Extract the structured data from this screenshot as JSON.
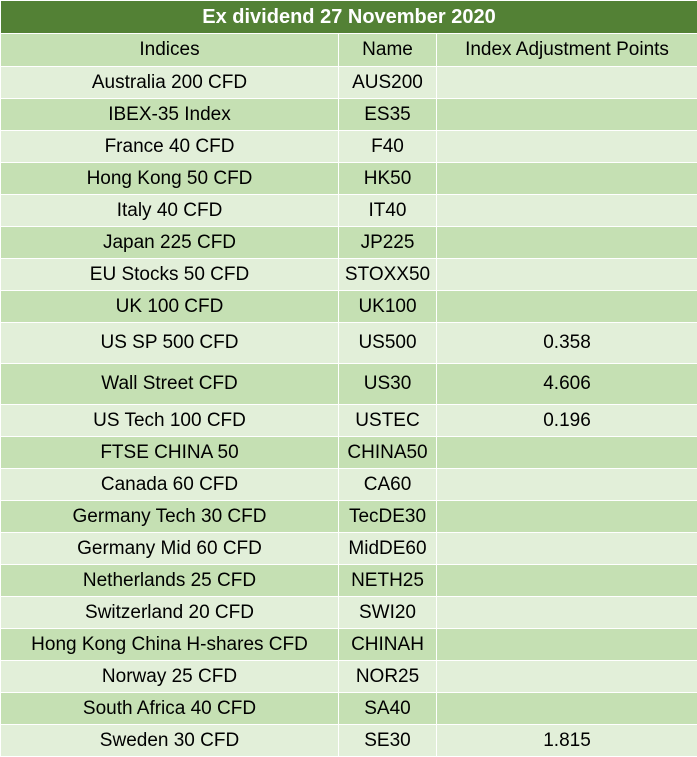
{
  "title": "Ex dividend 27 November 2020",
  "columns": [
    "Indices",
    "Name",
    "Index Adjustment Points"
  ],
  "rows": [
    {
      "index": "Australia 200 CFD",
      "name": "AUS200",
      "points": ""
    },
    {
      "index": "IBEX-35 Index",
      "name": "ES35",
      "points": ""
    },
    {
      "index": "France 40 CFD",
      "name": "F40",
      "points": ""
    },
    {
      "index": "Hong Kong 50 CFD",
      "name": "HK50",
      "points": ""
    },
    {
      "index": "Italy 40 CFD",
      "name": "IT40",
      "points": ""
    },
    {
      "index": "Japan 225 CFD",
      "name": "JP225",
      "points": ""
    },
    {
      "index": "EU Stocks 50 CFD",
      "name": "STOXX50",
      "points": ""
    },
    {
      "index": "UK 100 CFD",
      "name": "UK100",
      "points": ""
    },
    {
      "index": "US SP 500 CFD",
      "name": "US500",
      "points": "0.358"
    },
    {
      "index": "Wall Street CFD",
      "name": "US30",
      "points": "4.606"
    },
    {
      "index": "US Tech 100 CFD",
      "name": "USTEC",
      "points": "0.196"
    },
    {
      "index": "FTSE CHINA 50",
      "name": "CHINA50",
      "points": ""
    },
    {
      "index": "Canada 60 CFD",
      "name": "CA60",
      "points": ""
    },
    {
      "index": "Germany Tech 30 CFD",
      "name": "TecDE30",
      "points": ""
    },
    {
      "index": "Germany Mid 60 CFD",
      "name": "MidDE60",
      "points": ""
    },
    {
      "index": "Netherlands 25 CFD",
      "name": "NETH25",
      "points": ""
    },
    {
      "index": "Switzerland 20 CFD",
      "name": "SWI20",
      "points": ""
    },
    {
      "index": "Hong Kong China H-shares CFD",
      "name": "CHINAH",
      "points": ""
    },
    {
      "index": "Norway 25 CFD",
      "name": "NOR25",
      "points": ""
    },
    {
      "index": "South Africa 40 CFD",
      "name": "SA40",
      "points": ""
    },
    {
      "index": "Sweden 30 CFD",
      "name": "SE30",
      "points": "1.815"
    }
  ],
  "colors": {
    "title_bg": "#538135",
    "row_light": "#e2efd9",
    "row_dark": "#c5e0b3"
  }
}
